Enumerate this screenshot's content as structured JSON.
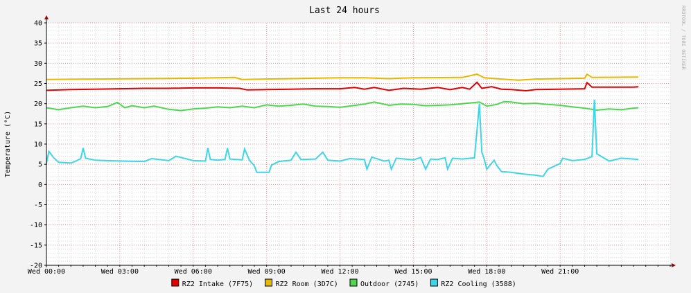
{
  "chart_data": {
    "type": "line",
    "title": "Last 24 hours",
    "ylabel": "Temperature (°C)",
    "watermark": "RRDTOOL / TOBI OETIKER",
    "ylim": [
      -20,
      40
    ],
    "yticks": [
      40,
      35,
      30,
      25,
      20,
      15,
      10,
      5,
      0,
      -5,
      -10,
      -15,
      -20
    ],
    "xlim_hours": [
      0,
      25.5
    ],
    "xticks": [
      {
        "hour": 0,
        "label": "Wed 00:00"
      },
      {
        "hour": 3,
        "label": "Wed 03:00"
      },
      {
        "hour": 6,
        "label": "Wed 06:00"
      },
      {
        "hour": 9,
        "label": "Wed 09:00"
      },
      {
        "hour": 12,
        "label": "Wed 12:00"
      },
      {
        "hour": 15,
        "label": "Wed 15:00"
      },
      {
        "hour": 18,
        "label": "Wed 18:00"
      },
      {
        "hour": 21,
        "label": "Wed 21:00"
      }
    ],
    "grid": true,
    "legend_position": "bottom",
    "series": [
      {
        "name": "RZ2 Intake (7F75)",
        "color": "#e00000",
        "points": [
          [
            0,
            23.3
          ],
          [
            1,
            23.5
          ],
          [
            2,
            23.6
          ],
          [
            3,
            23.7
          ],
          [
            4,
            23.8
          ],
          [
            5,
            23.8
          ],
          [
            6,
            23.9
          ],
          [
            7,
            23.9
          ],
          [
            7.9,
            23.8
          ],
          [
            8.2,
            23.4
          ],
          [
            9,
            23.5
          ],
          [
            10,
            23.6
          ],
          [
            11,
            23.7
          ],
          [
            12,
            23.7
          ],
          [
            12.6,
            24.0
          ],
          [
            13,
            23.6
          ],
          [
            13.4,
            24.0
          ],
          [
            14,
            23.3
          ],
          [
            14.6,
            23.8
          ],
          [
            15.3,
            23.6
          ],
          [
            16,
            24.0
          ],
          [
            16.5,
            23.5
          ],
          [
            17,
            24.0
          ],
          [
            17.3,
            23.6
          ],
          [
            17.6,
            25.3
          ],
          [
            17.8,
            23.8
          ],
          [
            18.2,
            24.2
          ],
          [
            18.6,
            23.6
          ],
          [
            19,
            23.5
          ],
          [
            19.6,
            23.2
          ],
          [
            20,
            23.5
          ],
          [
            21,
            23.6
          ],
          [
            22,
            23.7
          ],
          [
            22.1,
            25.2
          ],
          [
            22.3,
            24.1
          ],
          [
            23,
            24.1
          ],
          [
            24,
            24.1
          ],
          [
            24.2,
            24.2
          ]
        ]
      },
      {
        "name": "RZ2 Room (3D7C)",
        "color": "#e6b800",
        "points": [
          [
            0,
            26.0
          ],
          [
            2,
            26.1
          ],
          [
            4,
            26.2
          ],
          [
            6,
            26.3
          ],
          [
            7.7,
            26.5
          ],
          [
            8,
            26.0
          ],
          [
            10,
            26.2
          ],
          [
            12,
            26.4
          ],
          [
            13,
            26.4
          ],
          [
            14,
            26.2
          ],
          [
            15,
            26.4
          ],
          [
            17,
            26.5
          ],
          [
            17.6,
            27.3
          ],
          [
            17.9,
            26.4
          ],
          [
            18.6,
            26.1
          ],
          [
            19.3,
            25.8
          ],
          [
            20,
            26.1
          ],
          [
            21,
            26.2
          ],
          [
            22,
            26.3
          ],
          [
            22.1,
            27.3
          ],
          [
            22.3,
            26.5
          ],
          [
            24.2,
            26.6
          ]
        ]
      },
      {
        "name": "Outdoor (2745)",
        "color": "#4fd64f",
        "points": [
          [
            0,
            19.0
          ],
          [
            0.5,
            18.5
          ],
          [
            1,
            19.0
          ],
          [
            1.5,
            19.4
          ],
          [
            2,
            19.0
          ],
          [
            2.5,
            19.3
          ],
          [
            2.9,
            20.3
          ],
          [
            3.2,
            19.0
          ],
          [
            3.5,
            19.5
          ],
          [
            4,
            19.0
          ],
          [
            4.4,
            19.4
          ],
          [
            5,
            18.6
          ],
          [
            5.5,
            18.3
          ],
          [
            6,
            18.7
          ],
          [
            6.5,
            18.9
          ],
          [
            7,
            19.2
          ],
          [
            7.5,
            19.0
          ],
          [
            8,
            19.4
          ],
          [
            8.5,
            19.0
          ],
          [
            9,
            19.7
          ],
          [
            9.5,
            19.4
          ],
          [
            10,
            19.6
          ],
          [
            10.5,
            19.9
          ],
          [
            11,
            19.4
          ],
          [
            11.5,
            19.3
          ],
          [
            12,
            19.1
          ],
          [
            12.5,
            19.5
          ],
          [
            13,
            19.9
          ],
          [
            13.4,
            20.4
          ],
          [
            14,
            19.6
          ],
          [
            14.5,
            19.9
          ],
          [
            15,
            19.8
          ],
          [
            15.5,
            19.5
          ],
          [
            16,
            19.6
          ],
          [
            16.5,
            19.7
          ],
          [
            17,
            20.0
          ],
          [
            17.7,
            20.4
          ],
          [
            18,
            19.4
          ],
          [
            18.4,
            19.8
          ],
          [
            18.7,
            20.5
          ],
          [
            19,
            20.4
          ],
          [
            19.5,
            20.0
          ],
          [
            20,
            20.1
          ],
          [
            20.5,
            19.8
          ],
          [
            21,
            19.6
          ],
          [
            21.5,
            19.2
          ],
          [
            22,
            18.9
          ],
          [
            22.5,
            18.4
          ],
          [
            23,
            18.7
          ],
          [
            23.5,
            18.5
          ],
          [
            24,
            18.9
          ],
          [
            24.2,
            19.0
          ]
        ]
      },
      {
        "name": "RZ2 Cooling (3588)",
        "color": "#3dd6e6",
        "points": [
          [
            0,
            5.2
          ],
          [
            0.1,
            8.2
          ],
          [
            0.3,
            6.6
          ],
          [
            0.5,
            5.5
          ],
          [
            1,
            5.3
          ],
          [
            1.2,
            5.8
          ],
          [
            1.4,
            6.4
          ],
          [
            1.5,
            9.0
          ],
          [
            1.6,
            6.5
          ],
          [
            2,
            6.0
          ],
          [
            3,
            5.8
          ],
          [
            4,
            5.7
          ],
          [
            4.3,
            6.4
          ],
          [
            5,
            5.9
          ],
          [
            5.3,
            7.0
          ],
          [
            6,
            5.9
          ],
          [
            6.5,
            5.8
          ],
          [
            6.6,
            9.0
          ],
          [
            6.7,
            6.2
          ],
          [
            7,
            6.0
          ],
          [
            7.3,
            6.2
          ],
          [
            7.4,
            9.0
          ],
          [
            7.5,
            6.3
          ],
          [
            8,
            6.1
          ],
          [
            8.1,
            8.8
          ],
          [
            8.3,
            6.0
          ],
          [
            8.5,
            4.6
          ],
          [
            8.6,
            3.0
          ],
          [
            9.1,
            3.0
          ],
          [
            9.2,
            4.8
          ],
          [
            9.5,
            5.7
          ],
          [
            10,
            6.0
          ],
          [
            10.2,
            8.0
          ],
          [
            10.4,
            6.2
          ],
          [
            11,
            6.3
          ],
          [
            11.3,
            8.0
          ],
          [
            11.5,
            6.0
          ],
          [
            12,
            5.8
          ],
          [
            12.4,
            6.4
          ],
          [
            13,
            6.2
          ],
          [
            13.1,
            3.8
          ],
          [
            13.3,
            6.8
          ],
          [
            13.8,
            5.8
          ],
          [
            14,
            6.0
          ],
          [
            14.1,
            3.8
          ],
          [
            14.3,
            6.5
          ],
          [
            15,
            6.1
          ],
          [
            15.3,
            6.7
          ],
          [
            15.5,
            3.8
          ],
          [
            15.7,
            6.3
          ],
          [
            16,
            6.2
          ],
          [
            16.3,
            6.6
          ],
          [
            16.4,
            3.8
          ],
          [
            16.6,
            6.5
          ],
          [
            17,
            6.3
          ],
          [
            17.5,
            6.6
          ],
          [
            17.7,
            20.0
          ],
          [
            17.8,
            8.0
          ],
          [
            17.9,
            6.2
          ],
          [
            18,
            3.8
          ],
          [
            18.3,
            6.0
          ],
          [
            18.4,
            4.8
          ],
          [
            18.6,
            3.2
          ],
          [
            19,
            3.0
          ],
          [
            19.5,
            2.6
          ],
          [
            20,
            2.3
          ],
          [
            20.3,
            2.0
          ],
          [
            20.5,
            3.8
          ],
          [
            21,
            5.2
          ],
          [
            21.1,
            6.5
          ],
          [
            21.5,
            5.9
          ],
          [
            22,
            6.2
          ],
          [
            22.3,
            6.9
          ],
          [
            22.4,
            21.0
          ],
          [
            22.5,
            7.6
          ],
          [
            23,
            5.8
          ],
          [
            23.5,
            6.5
          ],
          [
            24,
            6.3
          ],
          [
            24.2,
            6.2
          ]
        ]
      }
    ]
  }
}
